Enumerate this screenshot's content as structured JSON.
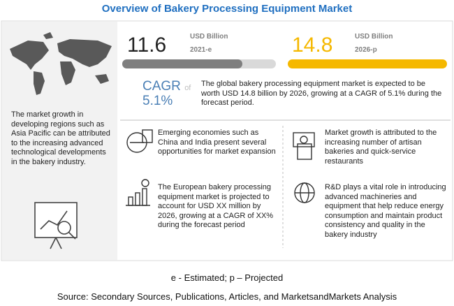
{
  "header": {
    "title": "Overview of Bakery Processing Equipment Market"
  },
  "left_panel": {
    "text": "The market growth in developing regions such as Asia Pacific can be attributed to the increasing advanced technological developments in the bakery industry."
  },
  "stats": [
    {
      "value": "11.6",
      "unit": "USD Billion",
      "year": "2021-e"
    },
    {
      "value": "14.8",
      "unit": "USD Billion",
      "year": "2026-p"
    }
  ],
  "cagr": {
    "label": "CAGR",
    "of": "of",
    "value": "5.1%",
    "text": "The global bakery processing equipment market is expected to be worth USD 14.8 billion by 2026, growing at a CAGR of 5.1% during the forecast period."
  },
  "items": [
    "Emerging economies such as China and India present several opportunities for market expansion",
    "Market growth is attributed to the increasing number of artisan bakeries and quick-service restaurants",
    "The European bakery processing equipment market is projected to account for USD XX million by 2026, growing at a CAGR of XX% during the forecast period",
    "R&D plays a vital role in introducing advanced machineries and equipment that help reduce energy consumption and maintain product consistency and quality in the bakery industry"
  ],
  "footer": {
    "legend": "e - Estimated; p – Projected",
    "source": "Source: Secondary Sources, Publications, Articles, and MarketsandMarkets Analysis"
  }
}
